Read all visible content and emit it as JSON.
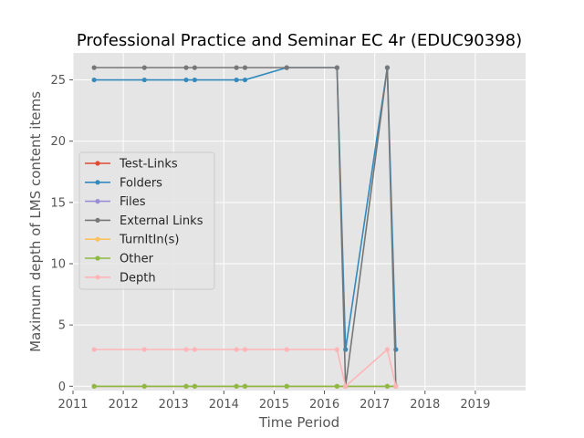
{
  "chart_data": {
    "type": "line",
    "title": "Professional Practice and Seminar EC 4r (EDUC90398)",
    "xlabel": "Time Period",
    "ylabel": "Maximum depth of LMS content items",
    "xlim": [
      2011.0,
      2020.0
    ],
    "ylim": [
      -0.35,
      27.2
    ],
    "xticks": [
      2011,
      2012,
      2013,
      2014,
      2015,
      2016,
      2017,
      2018,
      2019
    ],
    "yticks": [
      0,
      5,
      10,
      15,
      20,
      25
    ],
    "grid": true,
    "legend_position": "center-left",
    "x": [
      2011.42,
      2012.42,
      2013.25,
      2013.42,
      2014.25,
      2014.42,
      2015.25,
      2016.25,
      2016.42,
      2017.25,
      2017.42
    ],
    "series": [
      {
        "name": "Test-Links",
        "color": "#E24A33",
        "values": [
          0,
          0,
          0,
          0,
          0,
          0,
          0,
          0,
          0,
          0,
          0
        ]
      },
      {
        "name": "Folders",
        "color": "#348ABD",
        "values": [
          25,
          25,
          25,
          25,
          25,
          25,
          26,
          26,
          3,
          26,
          3
        ]
      },
      {
        "name": "Files",
        "color": "#988ED5",
        "values": [
          0,
          0,
          0,
          0,
          0,
          0,
          0,
          0,
          0,
          0,
          0
        ]
      },
      {
        "name": "External Links",
        "color": "#777777",
        "values": [
          26,
          26,
          26,
          26,
          26,
          26,
          26,
          26,
          0,
          26,
          0
        ]
      },
      {
        "name": "TurnItIn(s)",
        "color": "#FBC15E",
        "values": [
          0,
          0,
          0,
          0,
          0,
          0,
          0,
          0,
          0,
          0,
          0
        ]
      },
      {
        "name": "Other",
        "color": "#8EBA42",
        "values": [
          0,
          0,
          0,
          0,
          0,
          0,
          0,
          0,
          0,
          0,
          0
        ]
      },
      {
        "name": "Depth",
        "color": "#FFB5B8",
        "values": [
          3,
          3,
          3,
          3,
          3,
          3,
          3,
          3,
          0,
          3,
          0
        ]
      }
    ]
  }
}
